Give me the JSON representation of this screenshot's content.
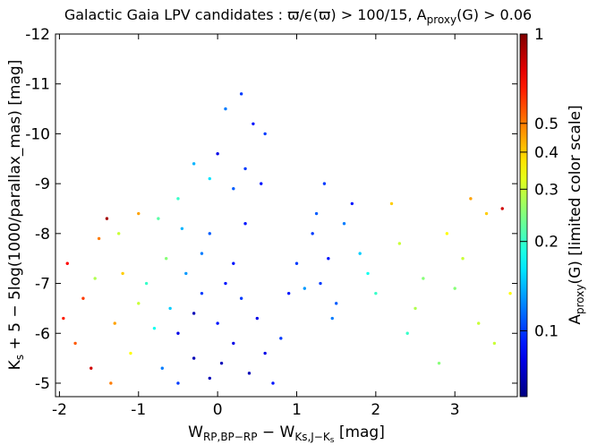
{
  "chart_data": {
    "type": "scatter",
    "title": [
      "Galactic Gaia LPV candidates : ϖ/ϵ(ϖ) > 100/15, A",
      "proxy",
      "(G) > 0.06"
    ],
    "x_label": [
      "W",
      "RP,BP−RP",
      " − W",
      "K",
      "s,J−K",
      "s",
      "  [mag]"
    ],
    "y_label": [
      "K",
      "s",
      " + 5 − 5log(1000/parallax_mas)  [mag]"
    ],
    "colorbar_label": [
      "A",
      "proxy",
      "(G)  [limited color scale]"
    ],
    "xlim": [
      -2.05,
      3.79
    ],
    "xticks": [
      -2,
      -1,
      0,
      1,
      2,
      3
    ],
    "ylim": [
      -12,
      -4.73
    ],
    "yticks": [
      -12,
      -11,
      -10,
      -9,
      -8,
      -7,
      -6,
      -5
    ],
    "y_inverted": true,
    "clim": [
      0.06,
      1
    ],
    "cticks": [
      0.1,
      0.2,
      0.3,
      0.4,
      0.5,
      1
    ],
    "color_scale": "log",
    "colormap": "jet",
    "series": [
      {
        "x": [
          -0.5,
          -0.3,
          0,
          0.2,
          -0.2,
          0.4,
          -0.7,
          0.1,
          -0.4,
          0.5,
          -0.1,
          0.3,
          -0.6,
          0.6,
          -0.8,
          0.7,
          -0.9,
          -0.2,
          0.2,
          -0.5,
          0.8,
          -0.3,
          0.05,
          -0.65,
          -1.0,
          -0.1,
          0.35,
          -0.45,
          0.9,
          -0.75,
          -1.9,
          -1.7,
          -1.5,
          -1.3,
          -1.8,
          -1.2,
          -1.6,
          -1.4,
          -1.1,
          -1.95,
          -1.25,
          -1.0,
          -1.55,
          -1.35,
          0.3,
          0.45,
          0.1,
          0.0,
          0.35,
          -0.3,
          0.55,
          0.2,
          -0.1,
          0.6,
          -0.5,
          1.2,
          1.4,
          1.6,
          1.3,
          1.8,
          1.5,
          1.1,
          1.7,
          1.9,
          1.35,
          1.45,
          1.0,
          2.0,
          1.25,
          2.3,
          2.6,
          2.9,
          3.1,
          3.4,
          3.6,
          2.5,
          3.0,
          3.3,
          2.2,
          3.7,
          2.8,
          3.5,
          2.4,
          3.2
        ],
        "values": [
          -6.0,
          -5.5,
          -6.2,
          -5.8,
          -6.8,
          -5.2,
          -5.3,
          -7.0,
          -7.2,
          -6.3,
          -5.1,
          -6.7,
          -6.5,
          -5.6,
          -6.1,
          -5.0,
          -7.0,
          -7.6,
          -7.4,
          -5.0,
          -5.9,
          -6.4,
          -5.4,
          -7.5,
          -6.6,
          -8.0,
          -8.2,
          -8.1,
          -6.8,
          -8.3,
          -7.4,
          -6.7,
          -7.9,
          -6.2,
          -5.8,
          -7.2,
          -5.3,
          -8.3,
          -5.6,
          -6.3,
          -8.0,
          -8.4,
          -7.1,
          -5.0,
          -10.8,
          -10.2,
          -10.5,
          -9.6,
          -9.3,
          -9.4,
          -9.0,
          -8.9,
          -9.1,
          -10.0,
          -8.7,
          -8.0,
          -7.5,
          -8.2,
          -7.0,
          -7.6,
          -6.6,
          -6.9,
          -8.6,
          -7.2,
          -9.0,
          -6.3,
          -7.4,
          -6.8,
          -8.4,
          -7.8,
          -7.1,
          -8.0,
          -7.5,
          -8.4,
          -8.5,
          -6.5,
          -6.9,
          -6.2,
          -8.6,
          -6.8,
          -5.4,
          -5.8,
          -6.0,
          -8.7
        ],
        "color_values": [
          0.08,
          0.07,
          0.09,
          0.08,
          0.1,
          0.07,
          0.12,
          0.09,
          0.13,
          0.08,
          0.07,
          0.1,
          0.15,
          0.08,
          0.18,
          0.09,
          0.2,
          0.12,
          0.09,
          0.1,
          0.1,
          0.07,
          0.07,
          0.25,
          0.3,
          0.11,
          0.09,
          0.14,
          0.09,
          0.22,
          0.7,
          0.6,
          0.5,
          0.45,
          0.55,
          0.4,
          0.8,
          0.9,
          0.35,
          0.65,
          0.3,
          0.45,
          0.28,
          0.5,
          0.1,
          0.09,
          0.12,
          0.08,
          0.1,
          0.14,
          0.09,
          0.11,
          0.16,
          0.1,
          0.2,
          0.1,
          0.09,
          0.12,
          0.1,
          0.15,
          0.11,
          0.13,
          0.09,
          0.18,
          0.1,
          0.12,
          0.1,
          0.2,
          0.11,
          0.3,
          0.25,
          0.35,
          0.3,
          0.4,
          0.8,
          0.28,
          0.25,
          0.3,
          0.4,
          0.35,
          0.25,
          0.3,
          0.2,
          0.45
        ]
      }
    ]
  }
}
